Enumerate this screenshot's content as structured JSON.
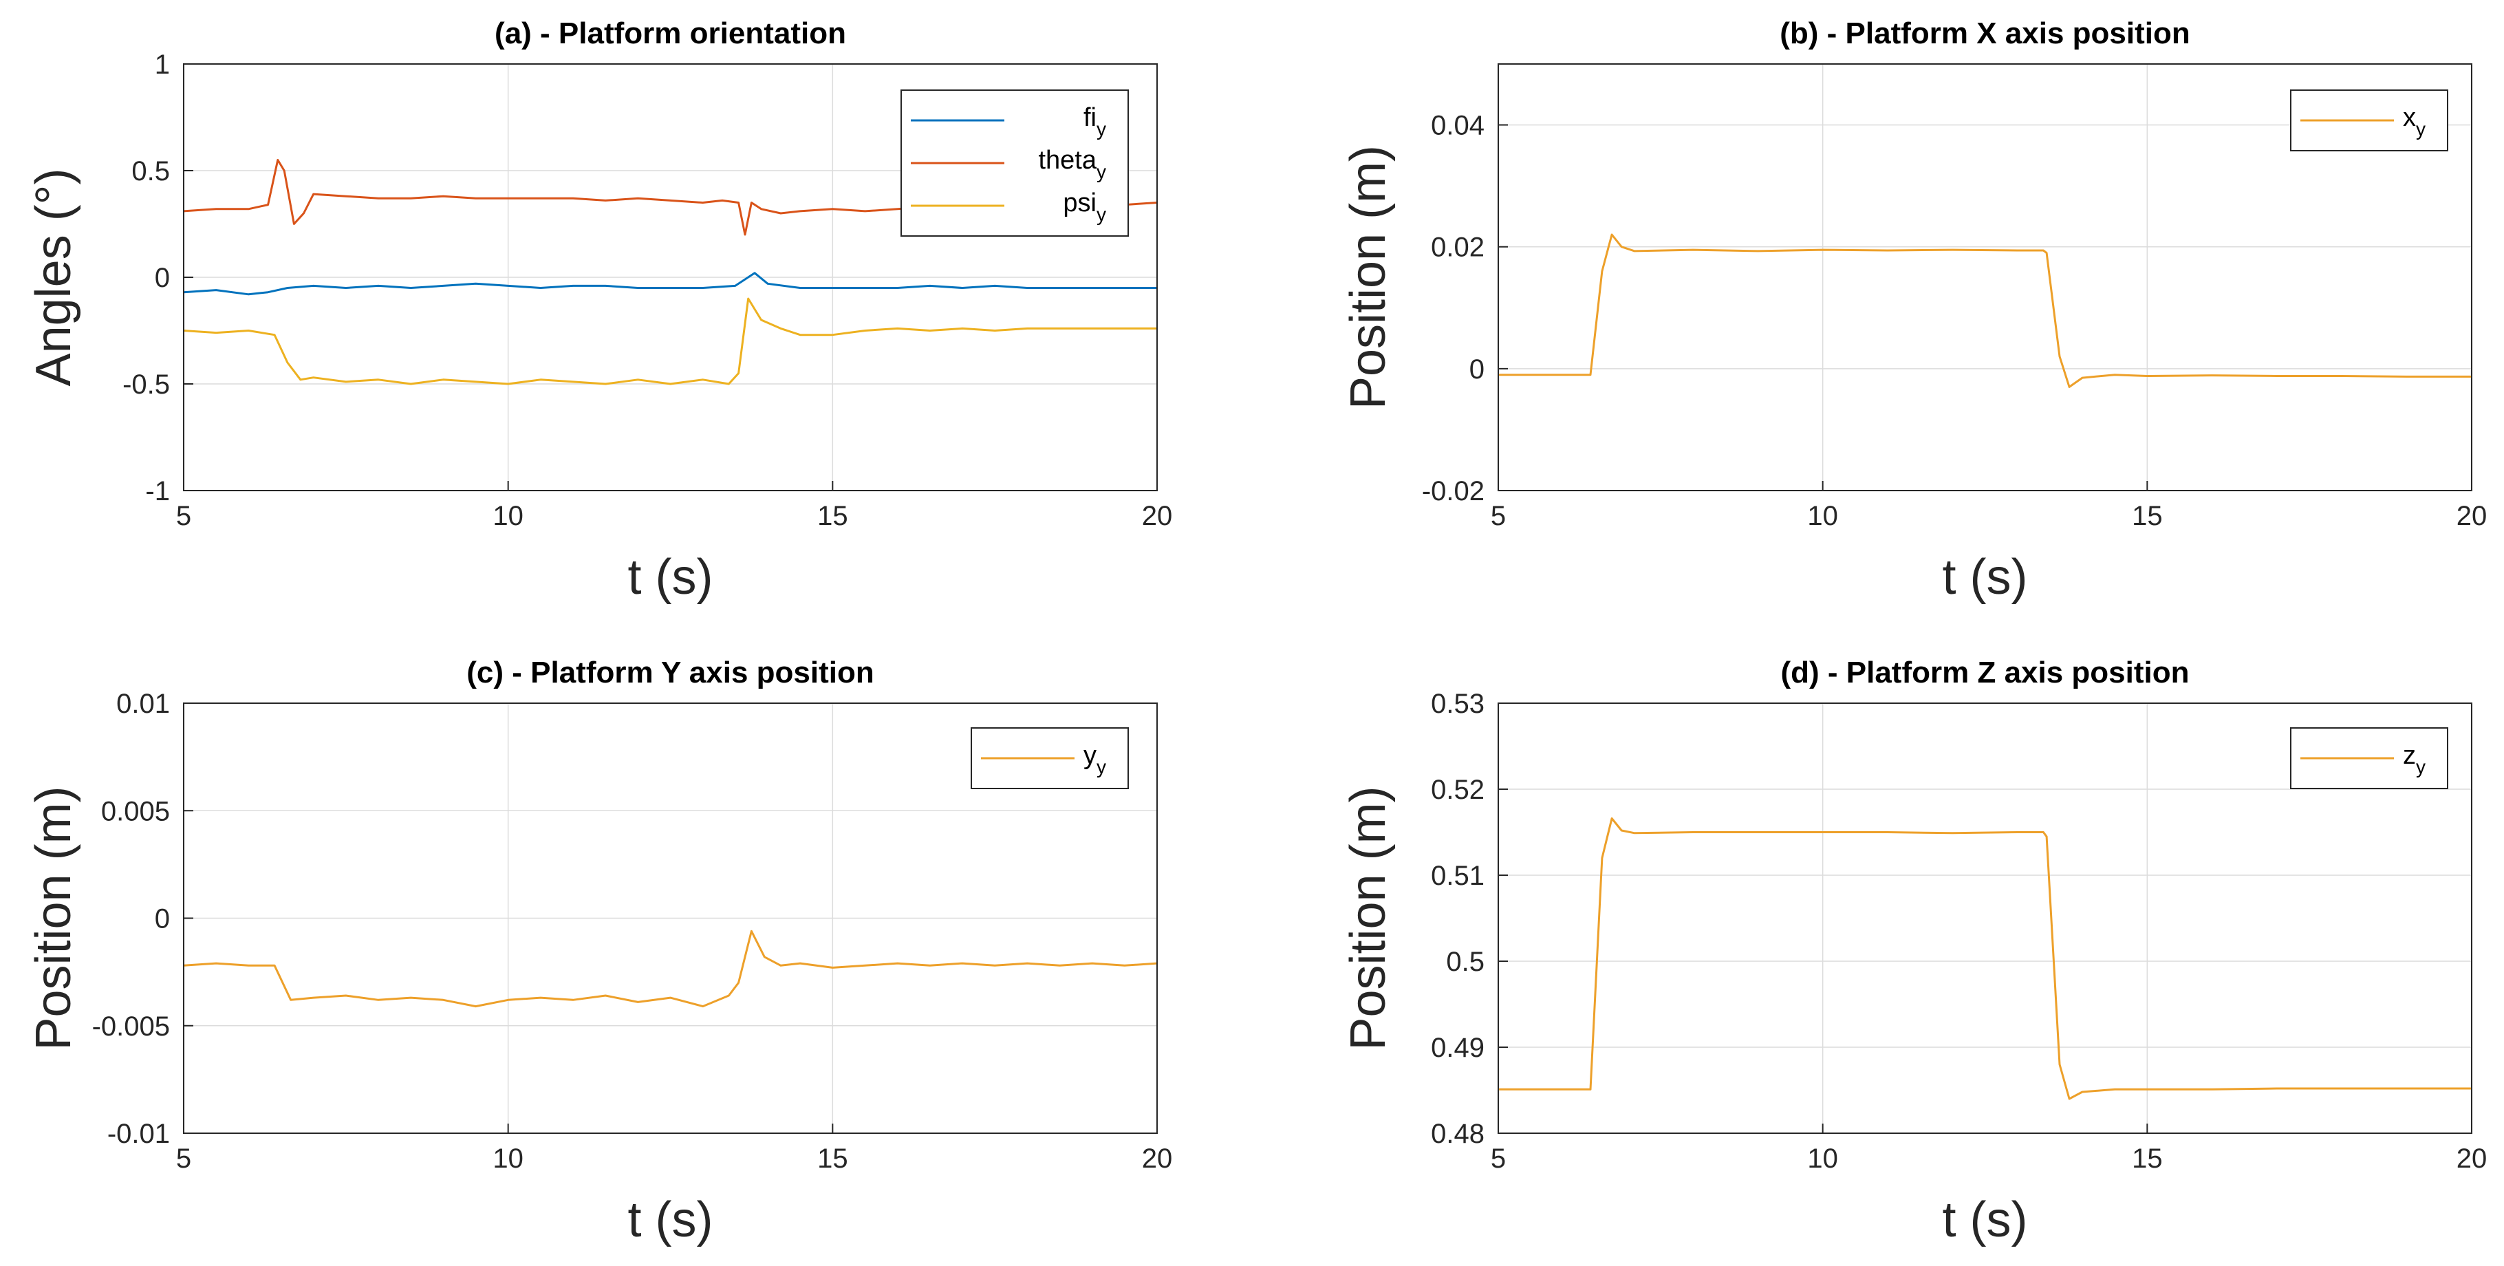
{
  "figure": {
    "background": "#ffffff"
  },
  "chart_data": [
    {
      "id": "a",
      "type": "line",
      "title": "(a) - Platform orientation",
      "xlabel": "t (s)",
      "ylabel": "Angles (°)",
      "xlim": [
        5,
        20
      ],
      "ylim": [
        -1,
        1
      ],
      "xticks": [
        5,
        10,
        15,
        20
      ],
      "yticks": [
        -1,
        -0.5,
        0,
        0.5,
        1
      ],
      "ytick_labels": [
        "-1",
        "-0.5",
        "0",
        "0.5",
        "1"
      ],
      "xtick_labels": [
        "5",
        "10",
        "15",
        "20"
      ],
      "grid": true,
      "legend_position": "top-right",
      "series": [
        {
          "name": "fi",
          "sub": "y",
          "color": "#0072BD",
          "points": [
            [
              5,
              -0.07
            ],
            [
              5.5,
              -0.06
            ],
            [
              6,
              -0.08
            ],
            [
              6.3,
              -0.07
            ],
            [
              6.6,
              -0.05
            ],
            [
              7,
              -0.04
            ],
            [
              7.5,
              -0.05
            ],
            [
              8,
              -0.04
            ],
            [
              8.5,
              -0.05
            ],
            [
              9,
              -0.04
            ],
            [
              9.5,
              -0.03
            ],
            [
              10,
              -0.04
            ],
            [
              10.5,
              -0.05
            ],
            [
              11,
              -0.04
            ],
            [
              11.5,
              -0.04
            ],
            [
              12,
              -0.05
            ],
            [
              12.5,
              -0.05
            ],
            [
              13,
              -0.05
            ],
            [
              13.5,
              -0.04
            ],
            [
              13.8,
              0.02
            ],
            [
              14,
              -0.03
            ],
            [
              14.5,
              -0.05
            ],
            [
              15,
              -0.05
            ],
            [
              15.5,
              -0.05
            ],
            [
              16,
              -0.05
            ],
            [
              16.5,
              -0.04
            ],
            [
              17,
              -0.05
            ],
            [
              17.5,
              -0.04
            ],
            [
              18,
              -0.05
            ],
            [
              18.5,
              -0.05
            ],
            [
              19,
              -0.05
            ],
            [
              19.5,
              -0.05
            ],
            [
              20,
              -0.05
            ]
          ]
        },
        {
          "name": "theta",
          "sub": "y",
          "color": "#D95319",
          "points": [
            [
              5,
              0.31
            ],
            [
              5.5,
              0.32
            ],
            [
              6,
              0.32
            ],
            [
              6.3,
              0.34
            ],
            [
              6.45,
              0.55
            ],
            [
              6.55,
              0.5
            ],
            [
              6.7,
              0.25
            ],
            [
              6.85,
              0.3
            ],
            [
              7,
              0.39
            ],
            [
              7.5,
              0.38
            ],
            [
              8,
              0.37
            ],
            [
              8.5,
              0.37
            ],
            [
              9,
              0.38
            ],
            [
              9.5,
              0.37
            ],
            [
              10,
              0.37
            ],
            [
              10.5,
              0.37
            ],
            [
              11,
              0.37
            ],
            [
              11.5,
              0.36
            ],
            [
              12,
              0.37
            ],
            [
              12.5,
              0.36
            ],
            [
              13,
              0.35
            ],
            [
              13.3,
              0.36
            ],
            [
              13.55,
              0.35
            ],
            [
              13.65,
              0.2
            ],
            [
              13.75,
              0.35
            ],
            [
              13.9,
              0.32
            ],
            [
              14.2,
              0.3
            ],
            [
              14.5,
              0.31
            ],
            [
              15,
              0.32
            ],
            [
              15.5,
              0.31
            ],
            [
              16,
              0.32
            ],
            [
              16.5,
              0.33
            ],
            [
              17,
              0.33
            ],
            [
              17.5,
              0.34
            ],
            [
              18,
              0.33
            ],
            [
              18.5,
              0.34
            ],
            [
              19,
              0.33
            ],
            [
              19.5,
              0.34
            ],
            [
              20,
              0.35
            ]
          ]
        },
        {
          "name": "psi",
          "sub": "y",
          "color": "#EDB120",
          "points": [
            [
              5,
              -0.25
            ],
            [
              5.5,
              -0.26
            ],
            [
              6,
              -0.25
            ],
            [
              6.4,
              -0.27
            ],
            [
              6.6,
              -0.4
            ],
            [
              6.8,
              -0.48
            ],
            [
              7,
              -0.47
            ],
            [
              7.5,
              -0.49
            ],
            [
              8,
              -0.48
            ],
            [
              8.5,
              -0.5
            ],
            [
              9,
              -0.48
            ],
            [
              9.5,
              -0.49
            ],
            [
              10,
              -0.5
            ],
            [
              10.5,
              -0.48
            ],
            [
              11,
              -0.49
            ],
            [
              11.5,
              -0.5
            ],
            [
              12,
              -0.48
            ],
            [
              12.5,
              -0.5
            ],
            [
              13,
              -0.48
            ],
            [
              13.4,
              -0.5
            ],
            [
              13.55,
              -0.45
            ],
            [
              13.7,
              -0.1
            ],
            [
              13.9,
              -0.2
            ],
            [
              14.2,
              -0.24
            ],
            [
              14.5,
              -0.27
            ],
            [
              15,
              -0.27
            ],
            [
              15.5,
              -0.25
            ],
            [
              16,
              -0.24
            ],
            [
              16.5,
              -0.25
            ],
            [
              17,
              -0.24
            ],
            [
              17.5,
              -0.25
            ],
            [
              18,
              -0.24
            ],
            [
              18.5,
              -0.24
            ],
            [
              19,
              -0.24
            ],
            [
              19.5,
              -0.24
            ],
            [
              20,
              -0.24
            ]
          ]
        }
      ]
    },
    {
      "id": "b",
      "type": "line",
      "title": "(b) - Platform X axis position",
      "xlabel": "t (s)",
      "ylabel": "Position (m)",
      "xlim": [
        5,
        20
      ],
      "ylim": [
        -0.02,
        0.05
      ],
      "xticks": [
        5,
        10,
        15,
        20
      ],
      "yticks": [
        -0.02,
        0,
        0.02,
        0.04
      ],
      "ytick_labels": [
        "-0.02",
        "0",
        "0.02",
        "0.04"
      ],
      "xtick_labels": [
        "5",
        "10",
        "15",
        "20"
      ],
      "grid": true,
      "legend_position": "top-right",
      "series": [
        {
          "name": "x",
          "sub": "y",
          "color": "#EDA02A",
          "points": [
            [
              5,
              -0.001
            ],
            [
              6.3,
              -0.001
            ],
            [
              6.42,
              -0.001
            ],
            [
              6.6,
              0.016
            ],
            [
              6.75,
              0.022
            ],
            [
              6.9,
              0.02
            ],
            [
              7.1,
              0.0193
            ],
            [
              8,
              0.0195
            ],
            [
              9,
              0.0193
            ],
            [
              10,
              0.0195
            ],
            [
              11,
              0.0194
            ],
            [
              12,
              0.0195
            ],
            [
              13,
              0.0194
            ],
            [
              13.4,
              0.0194
            ],
            [
              13.45,
              0.019
            ],
            [
              13.65,
              0.002
            ],
            [
              13.8,
              -0.003
            ],
            [
              14,
              -0.0015
            ],
            [
              14.5,
              -0.001
            ],
            [
              15,
              -0.0012
            ],
            [
              16,
              -0.0011
            ],
            [
              17,
              -0.0012
            ],
            [
              18,
              -0.0012
            ],
            [
              19,
              -0.0013
            ],
            [
              20,
              -0.0013
            ]
          ]
        }
      ]
    },
    {
      "id": "c",
      "type": "line",
      "title": "(c) - Platform Y axis position",
      "xlabel": "t (s)",
      "ylabel": "Position (m)",
      "xlim": [
        5,
        20
      ],
      "ylim": [
        -0.01,
        0.01
      ],
      "xticks": [
        5,
        10,
        15,
        20
      ],
      "yticks": [
        -0.01,
        -0.005,
        0,
        0.005,
        0.01
      ],
      "ytick_labels": [
        "-0.01",
        "-0.005",
        "0",
        "0.005",
        "0.01"
      ],
      "xtick_labels": [
        "5",
        "10",
        "15",
        "20"
      ],
      "grid": true,
      "legend_position": "top-right",
      "series": [
        {
          "name": "y",
          "sub": "y",
          "color": "#EDA02A",
          "points": [
            [
              5,
              -0.0022
            ],
            [
              5.5,
              -0.0021
            ],
            [
              6,
              -0.0022
            ],
            [
              6.4,
              -0.0022
            ],
            [
              6.65,
              -0.0038
            ],
            [
              7,
              -0.0037
            ],
            [
              7.5,
              -0.0036
            ],
            [
              8,
              -0.0038
            ],
            [
              8.5,
              -0.0037
            ],
            [
              9,
              -0.0038
            ],
            [
              9.5,
              -0.0041
            ],
            [
              10,
              -0.0038
            ],
            [
              10.5,
              -0.0037
            ],
            [
              11,
              -0.0038
            ],
            [
              11.5,
              -0.0036
            ],
            [
              12,
              -0.0039
            ],
            [
              12.5,
              -0.0037
            ],
            [
              13,
              -0.0041
            ],
            [
              13.4,
              -0.0036
            ],
            [
              13.55,
              -0.003
            ],
            [
              13.75,
              -0.0006
            ],
            [
              13.95,
              -0.0018
            ],
            [
              14.2,
              -0.0022
            ],
            [
              14.5,
              -0.0021
            ],
            [
              15,
              -0.0023
            ],
            [
              15.5,
              -0.0022
            ],
            [
              16,
              -0.0021
            ],
            [
              16.5,
              -0.0022
            ],
            [
              17,
              -0.0021
            ],
            [
              17.5,
              -0.0022
            ],
            [
              18,
              -0.0021
            ],
            [
              18.5,
              -0.0022
            ],
            [
              19,
              -0.0021
            ],
            [
              19.5,
              -0.0022
            ],
            [
              20,
              -0.0021
            ]
          ]
        }
      ]
    },
    {
      "id": "d",
      "type": "line",
      "title": "(d) - Platform Z axis position",
      "xlabel": "t (s)",
      "ylabel": "Position (m)",
      "xlim": [
        5,
        20
      ],
      "ylim": [
        0.48,
        0.53
      ],
      "xticks": [
        5,
        10,
        15,
        20
      ],
      "yticks": [
        0.48,
        0.49,
        0.5,
        0.51,
        0.52,
        0.53
      ],
      "ytick_labels": [
        "0.48",
        "0.49",
        "0.5",
        "0.51",
        "0.52",
        "0.53"
      ],
      "xtick_labels": [
        "5",
        "10",
        "15",
        "20"
      ],
      "grid": true,
      "legend_position": "top-right",
      "series": [
        {
          "name": "z",
          "sub": "y",
          "color": "#EDA02A",
          "points": [
            [
              5,
              0.4851
            ],
            [
              6.3,
              0.4851
            ],
            [
              6.42,
              0.4851
            ],
            [
              6.6,
              0.512
            ],
            [
              6.75,
              0.5166
            ],
            [
              6.9,
              0.5152
            ],
            [
              7.1,
              0.5149
            ],
            [
              8,
              0.515
            ],
            [
              9,
              0.515
            ],
            [
              10,
              0.515
            ],
            [
              11,
              0.515
            ],
            [
              12,
              0.5149
            ],
            [
              13,
              0.515
            ],
            [
              13.4,
              0.515
            ],
            [
              13.45,
              0.5145
            ],
            [
              13.65,
              0.488
            ],
            [
              13.8,
              0.484
            ],
            [
              14,
              0.4848
            ],
            [
              14.5,
              0.4851
            ],
            [
              15,
              0.4851
            ],
            [
              16,
              0.4851
            ],
            [
              17,
              0.4852
            ],
            [
              18,
              0.4852
            ],
            [
              19,
              0.4852
            ],
            [
              20,
              0.4852
            ]
          ]
        }
      ]
    }
  ]
}
